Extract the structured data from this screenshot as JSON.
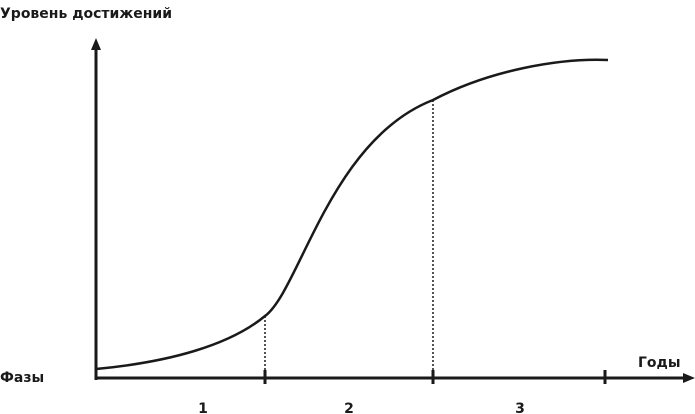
{
  "y_axis_label": "Уровень достижений",
  "x_axis_label": "Годы",
  "phases_label": "Фазы",
  "phases": [
    "1",
    "2",
    "3"
  ]
}
